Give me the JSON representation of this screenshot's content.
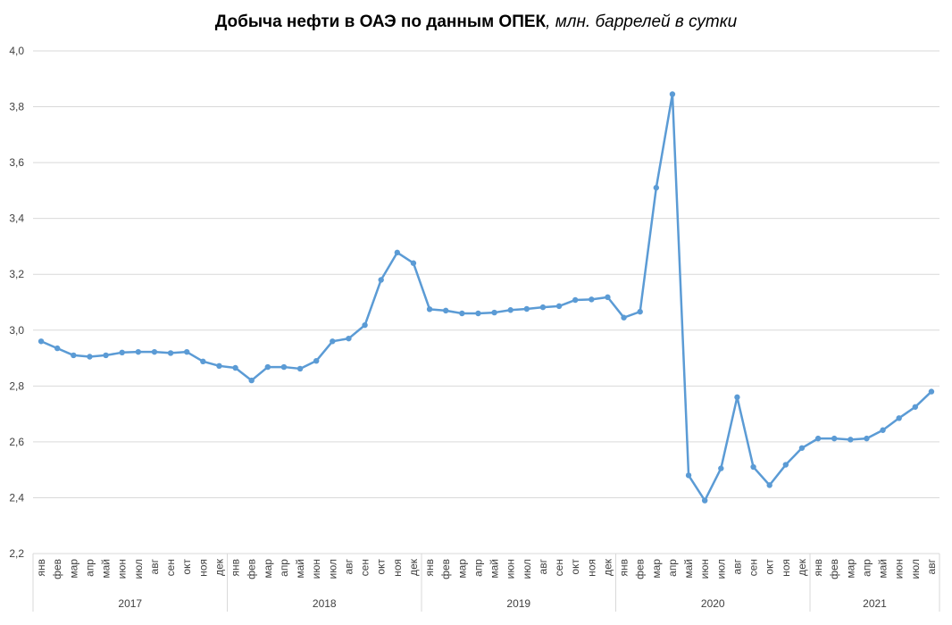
{
  "chart_data": {
    "type": "line",
    "title": "Добыча нефти в ОАЭ по данным ОПЕК",
    "subtitle": ", млн. баррелей в сутки",
    "categories": [
      "янв",
      "фев",
      "мар",
      "апр",
      "май",
      "июн",
      "июл",
      "авг",
      "сен",
      "окт",
      "ноя",
      "дек",
      "янв",
      "фев",
      "мар",
      "апр",
      "май",
      "июн",
      "июл",
      "авг",
      "сен",
      "окт",
      "ноя",
      "дек",
      "янв",
      "фев",
      "мар",
      "апр",
      "май",
      "июн",
      "июл",
      "авг",
      "сен",
      "окт",
      "ноя",
      "дек",
      "янв",
      "фев",
      "мар",
      "апр",
      "май",
      "июн",
      "июл",
      "авг",
      "сен",
      "окт",
      "ноя",
      "дек",
      "янв",
      "фев",
      "мар",
      "апр",
      "май",
      "июн",
      "июл",
      "авг"
    ],
    "groups": [
      "2017",
      "2018",
      "2019",
      "2020",
      "2021"
    ],
    "series": [
      {
        "color": "#5b9bd5",
        "values": [
          2.96,
          2.935,
          2.91,
          2.905,
          2.91,
          2.92,
          2.922,
          2.922,
          2.918,
          2.922,
          2.888,
          2.872,
          2.865,
          2.82,
          2.868,
          2.868,
          2.862,
          2.89,
          2.96,
          2.97,
          3.018,
          3.18,
          3.278,
          3.24,
          3.075,
          3.07,
          3.06,
          3.06,
          3.063,
          3.072,
          3.076,
          3.082,
          3.086,
          3.108,
          3.11,
          3.118,
          3.045,
          3.066,
          3.51,
          3.845,
          2.48,
          2.39,
          2.505,
          2.76,
          2.51,
          2.445,
          2.518,
          2.578,
          2.612,
          2.612,
          2.608,
          2.612,
          2.642,
          2.685,
          2.725,
          2.78
        ]
      }
    ],
    "ylim": [
      2.2,
      4.0
    ],
    "yticks": [
      {
        "value": 2.2,
        "label": "2,2"
      },
      {
        "value": 2.4,
        "label": "2,4"
      },
      {
        "value": 2.6,
        "label": "2,6"
      },
      {
        "value": 2.8,
        "label": "2,8"
      },
      {
        "value": 3.0,
        "label": "3,0"
      },
      {
        "value": 3.2,
        "label": "3,2"
      },
      {
        "value": 3.4,
        "label": "3,4"
      },
      {
        "value": 3.6,
        "label": "3,6"
      },
      {
        "value": 3.8,
        "label": "3,8"
      },
      {
        "value": 4.0,
        "label": "4,0"
      }
    ],
    "grid": true
  }
}
